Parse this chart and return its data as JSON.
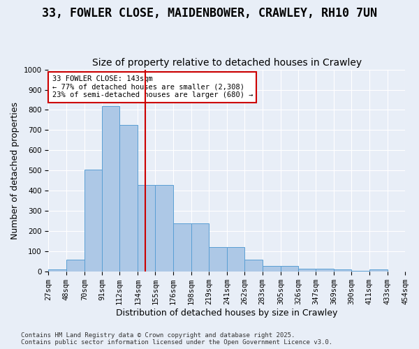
{
  "title": "33, FOWLER CLOSE, MAIDENBOWER, CRAWLEY, RH10 7UN",
  "subtitle": "Size of property relative to detached houses in Crawley",
  "xlabel": "Distribution of detached houses by size in Crawley",
  "ylabel": "Number of detached properties",
  "footer_line1": "Contains HM Land Registry data © Crown copyright and database right 2025.",
  "footer_line2": "Contains public sector information licensed under the Open Government Licence v3.0.",
  "annotation_line1": "33 FOWLER CLOSE: 143sqm",
  "annotation_line2": "← 77% of detached houses are smaller (2,308)",
  "annotation_line3": "23% of semi-detached houses are larger (680) →",
  "property_size": 143,
  "bin_edges": [
    27,
    48,
    70,
    91,
    112,
    134,
    155,
    176,
    198,
    219,
    241,
    262,
    283,
    305,
    326,
    347,
    369,
    390,
    411,
    433,
    454
  ],
  "bin_counts": [
    10,
    60,
    505,
    820,
    725,
    430,
    430,
    240,
    240,
    120,
    120,
    60,
    30,
    30,
    15,
    15,
    10,
    5,
    10,
    0
  ],
  "bar_color": "#adc8e6",
  "bar_edge_color": "#5a9fd4",
  "vline_color": "#cc0000",
  "bg_color": "#e8eef7",
  "annotation_box_color": "#ffffff",
  "annotation_box_edge": "#cc0000",
  "grid_color": "#ffffff",
  "title_fontsize": 12,
  "subtitle_fontsize": 10,
  "axis_label_fontsize": 9,
  "tick_fontsize": 7.5,
  "annotation_fontsize": 7.5,
  "footer_fontsize": 6.5,
  "ylim": [
    0,
    1000
  ]
}
